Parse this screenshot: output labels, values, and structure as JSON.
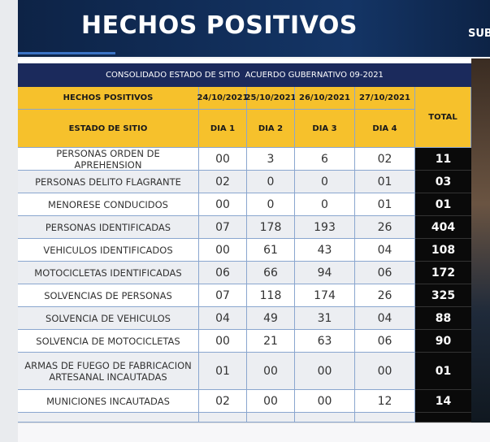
{
  "header": {
    "title": "HECHOS POSITIVOS",
    "side_text": "SUB"
  },
  "table": {
    "caption": "CONSOLIDADO ESTADO DE SITIO  ACUERDO GUBERNATIVO 09-2021",
    "header_top": [
      "HECHOS POSITIVOS",
      "24/10/2021",
      "25/10/2021",
      "26/10/2021",
      "27/10/2021"
    ],
    "header_bottom": [
      "ESTADO DE SITIO",
      "DIA 1",
      "DIA 2",
      "DIA 3",
      "DIA 4"
    ],
    "total_label": "TOTAL",
    "rows": [
      [
        "PERSONAS ORDEN DE APREHENSION",
        "00",
        "3",
        "6",
        "02",
        "11"
      ],
      [
        "PERSONAS DELITO FLAGRANTE",
        "02",
        "0",
        "0",
        "01",
        "03"
      ],
      [
        "MENORESE CONDUCIDOS",
        "00",
        "0",
        "0",
        "01",
        "01"
      ],
      [
        "PERSONAS IDENTIFICADAS",
        "07",
        "178",
        "193",
        "26",
        "404"
      ],
      [
        "VEHICULOS IDENTIFICADOS",
        "00",
        "61",
        "43",
        "04",
        "108"
      ],
      [
        "MOTOCICLETAS IDENTIFICADAS",
        "06",
        "66",
        "94",
        "06",
        "172"
      ],
      [
        "SOLVENCIAS DE PERSONAS",
        "07",
        "118",
        "174",
        "26",
        "325"
      ],
      [
        "SOLVENCIA DE VEHICULOS",
        "04",
        "49",
        "31",
        "04",
        "88"
      ],
      [
        "SOLVENCIA DE MOTOCICLETAS",
        "00",
        "21",
        "63",
        "06",
        "90"
      ],
      [
        "ARMAS DE FUEGO DE FABRICACION ARTESANAL INCAUTADAS",
        "01",
        "00",
        "00",
        "00",
        "01"
      ],
      [
        "MUNICIONES INCAUTADAS",
        "02",
        "00",
        "00",
        "12",
        "14"
      ]
    ]
  }
}
